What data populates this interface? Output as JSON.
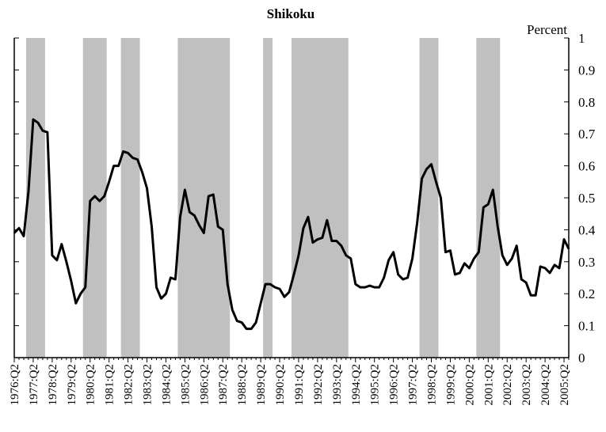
{
  "chart_data": {
    "type": "line",
    "title": "Shikoku",
    "ylabel": "Percent",
    "ylim": [
      0,
      1
    ],
    "y_ticks": [
      "0",
      "0.1",
      "0.2",
      "0.3",
      "0.4",
      "0.5",
      "0.6",
      "0.7",
      "0.8",
      "0.9",
      "1"
    ],
    "x_tick_labels": [
      "1976:Q2",
      "1977:Q2",
      "1978:Q2",
      "1979:Q2",
      "1980:Q2",
      "1981:Q2",
      "1982:Q2",
      "1983:Q2",
      "1984:Q2",
      "1985:Q2",
      "1986:Q2",
      "1987:Q2",
      "1988:Q2",
      "1989:Q2",
      "1990:Q2",
      "1991:Q2",
      "1992:Q2",
      "1993:Q2",
      "1994:Q2",
      "1995:Q2",
      "1996:Q2",
      "1997:Q2",
      "1998:Q2",
      "1999:Q2",
      "2000:Q2",
      "2001:Q2",
      "2002:Q2",
      "2003:Q2",
      "2004:Q2",
      "2005:Q2"
    ],
    "shaded_periods": [
      {
        "start": "1977:Q1",
        "end": "1977:Q4"
      },
      {
        "start": "1980:Q1",
        "end": "1981:Q1"
      },
      {
        "start": "1982:Q1",
        "end": "1982:Q4"
      },
      {
        "start": "1985:Q1",
        "end": "1987:Q3"
      },
      {
        "start": "1989:Q3",
        "end": "1989:Q4"
      },
      {
        "start": "1991:Q1",
        "end": "1993:Q4"
      },
      {
        "start": "1997:Q4",
        "end": "1998:Q3"
      },
      {
        "start": "2000:Q4",
        "end": "2001:Q4"
      }
    ],
    "shade_color": "#c0c0c0",
    "line_color": "#000000",
    "series": [
      {
        "start": "1976:Q2",
        "frequency": "quarterly",
        "values": [
          0.39,
          0.405,
          0.38,
          0.52,
          0.745,
          0.735,
          0.71,
          0.705,
          0.32,
          0.305,
          0.355,
          0.3,
          0.24,
          0.17,
          0.2,
          0.22,
          0.49,
          0.505,
          0.49,
          0.505,
          0.55,
          0.6,
          0.6,
          0.645,
          0.64,
          0.625,
          0.62,
          0.58,
          0.53,
          0.41,
          0.22,
          0.185,
          0.2,
          0.25,
          0.245,
          0.44,
          0.525,
          0.455,
          0.445,
          0.415,
          0.39,
          0.505,
          0.51,
          0.41,
          0.4,
          0.23,
          0.15,
          0.115,
          0.11,
          0.09,
          0.09,
          0.11,
          0.17,
          0.23,
          0.23,
          0.22,
          0.215,
          0.19,
          0.205,
          0.26,
          0.32,
          0.405,
          0.44,
          0.36,
          0.37,
          0.375,
          0.43,
          0.365,
          0.365,
          0.35,
          0.32,
          0.31,
          0.23,
          0.22,
          0.22,
          0.225,
          0.22,
          0.22,
          0.25,
          0.305,
          0.33,
          0.26,
          0.245,
          0.25,
          0.31,
          0.42,
          0.56,
          0.59,
          0.605,
          0.55,
          0.5,
          0.33,
          0.335,
          0.26,
          0.265,
          0.295,
          0.28,
          0.31,
          0.33,
          0.47,
          0.48,
          0.525,
          0.41,
          0.32,
          0.29,
          0.31,
          0.35,
          0.245,
          0.235,
          0.195,
          0.195,
          0.285,
          0.28,
          0.265,
          0.29,
          0.28,
          0.37,
          0.34
        ]
      }
    ]
  }
}
